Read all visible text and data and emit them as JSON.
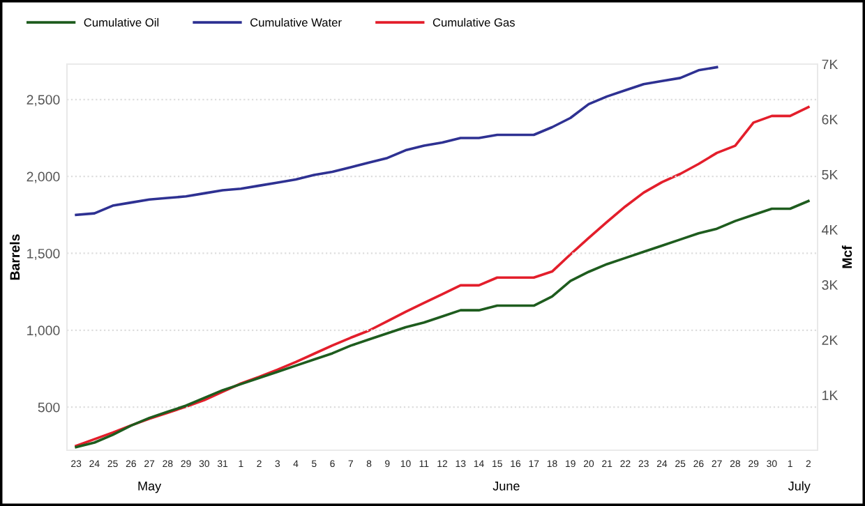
{
  "chart_data": {
    "type": "line",
    "categories": [
      "23",
      "24",
      "25",
      "26",
      "27",
      "28",
      "29",
      "30",
      "31",
      "1",
      "2",
      "3",
      "4",
      "5",
      "6",
      "7",
      "8",
      "9",
      "10",
      "11",
      "12",
      "13",
      "14",
      "15",
      "16",
      "17",
      "18",
      "19",
      "20",
      "21",
      "22",
      "23",
      "24",
      "25",
      "26",
      "27",
      "28",
      "29",
      "30",
      "1",
      "2"
    ],
    "series": [
      {
        "name": "Cumulative Oil",
        "color": "#1e5c1e",
        "values": [
          240,
          270,
          320,
          380,
          430,
          470,
          510,
          560,
          610,
          650,
          690,
          730,
          770,
          810,
          850,
          900,
          940,
          980,
          1020,
          1050,
          1090,
          1130,
          1130,
          1160,
          1160,
          1160,
          1220,
          1320,
          1380,
          1430,
          1470,
          1510,
          1550,
          1590,
          1630,
          1660,
          1710,
          1750,
          1790,
          1790,
          1840
        ]
      },
      {
        "name": "Cumulative Water",
        "color": "#2e3192",
        "values": [
          1750,
          1760,
          1810,
          1830,
          1850,
          1860,
          1870,
          1890,
          1910,
          1920,
          1940,
          1960,
          1980,
          2010,
          2030,
          2060,
          2090,
          2120,
          2170,
          2200,
          2220,
          2250,
          2250,
          2270,
          2270,
          2270,
          2320,
          2380,
          2470,
          2520,
          2560,
          2600,
          2620,
          2640,
          2690,
          2710,
          null,
          null,
          null,
          null,
          null
        ]
      },
      {
        "name": "Cumulative Gas",
        "color": "#e31e2b",
        "axis": "y2",
        "values": [
          80,
          200,
          320,
          450,
          570,
          680,
          790,
          910,
          1060,
          1210,
          1330,
          1460,
          1600,
          1750,
          1900,
          2040,
          2170,
          2340,
          2510,
          2670,
          2830,
          2990,
          2990,
          3130,
          3130,
          3130,
          3240,
          3550,
          3850,
          4140,
          4420,
          4670,
          4860,
          5010,
          5190,
          5390,
          5520,
          5940,
          6060,
          6060,
          6220
        ]
      }
    ],
    "ylabel": "Barrels",
    "y2label": "Mcf",
    "ylim": [
      220,
      2730
    ],
    "yticks": [
      {
        "value": 500,
        "label": "500"
      },
      {
        "value": 1000,
        "label": "1,000"
      },
      {
        "value": 1500,
        "label": "1,500"
      },
      {
        "value": 2000,
        "label": "2,000"
      },
      {
        "value": 2500,
        "label": "2,500"
      }
    ],
    "y2lim": [
      0,
      7000
    ],
    "y2ticks": [
      {
        "value": 1000,
        "label": "1K"
      },
      {
        "value": 2000,
        "label": "2K"
      },
      {
        "value": 3000,
        "label": "3K"
      },
      {
        "value": 4000,
        "label": "4K"
      },
      {
        "value": 5000,
        "label": "5K"
      },
      {
        "value": 6000,
        "label": "6K"
      },
      {
        "value": 7000,
        "label": "7K"
      }
    ],
    "annotations": [
      "May",
      "June",
      "July"
    ],
    "grid": "y",
    "legend": "top left",
    "marker": "none",
    "line_style": "solid"
  }
}
